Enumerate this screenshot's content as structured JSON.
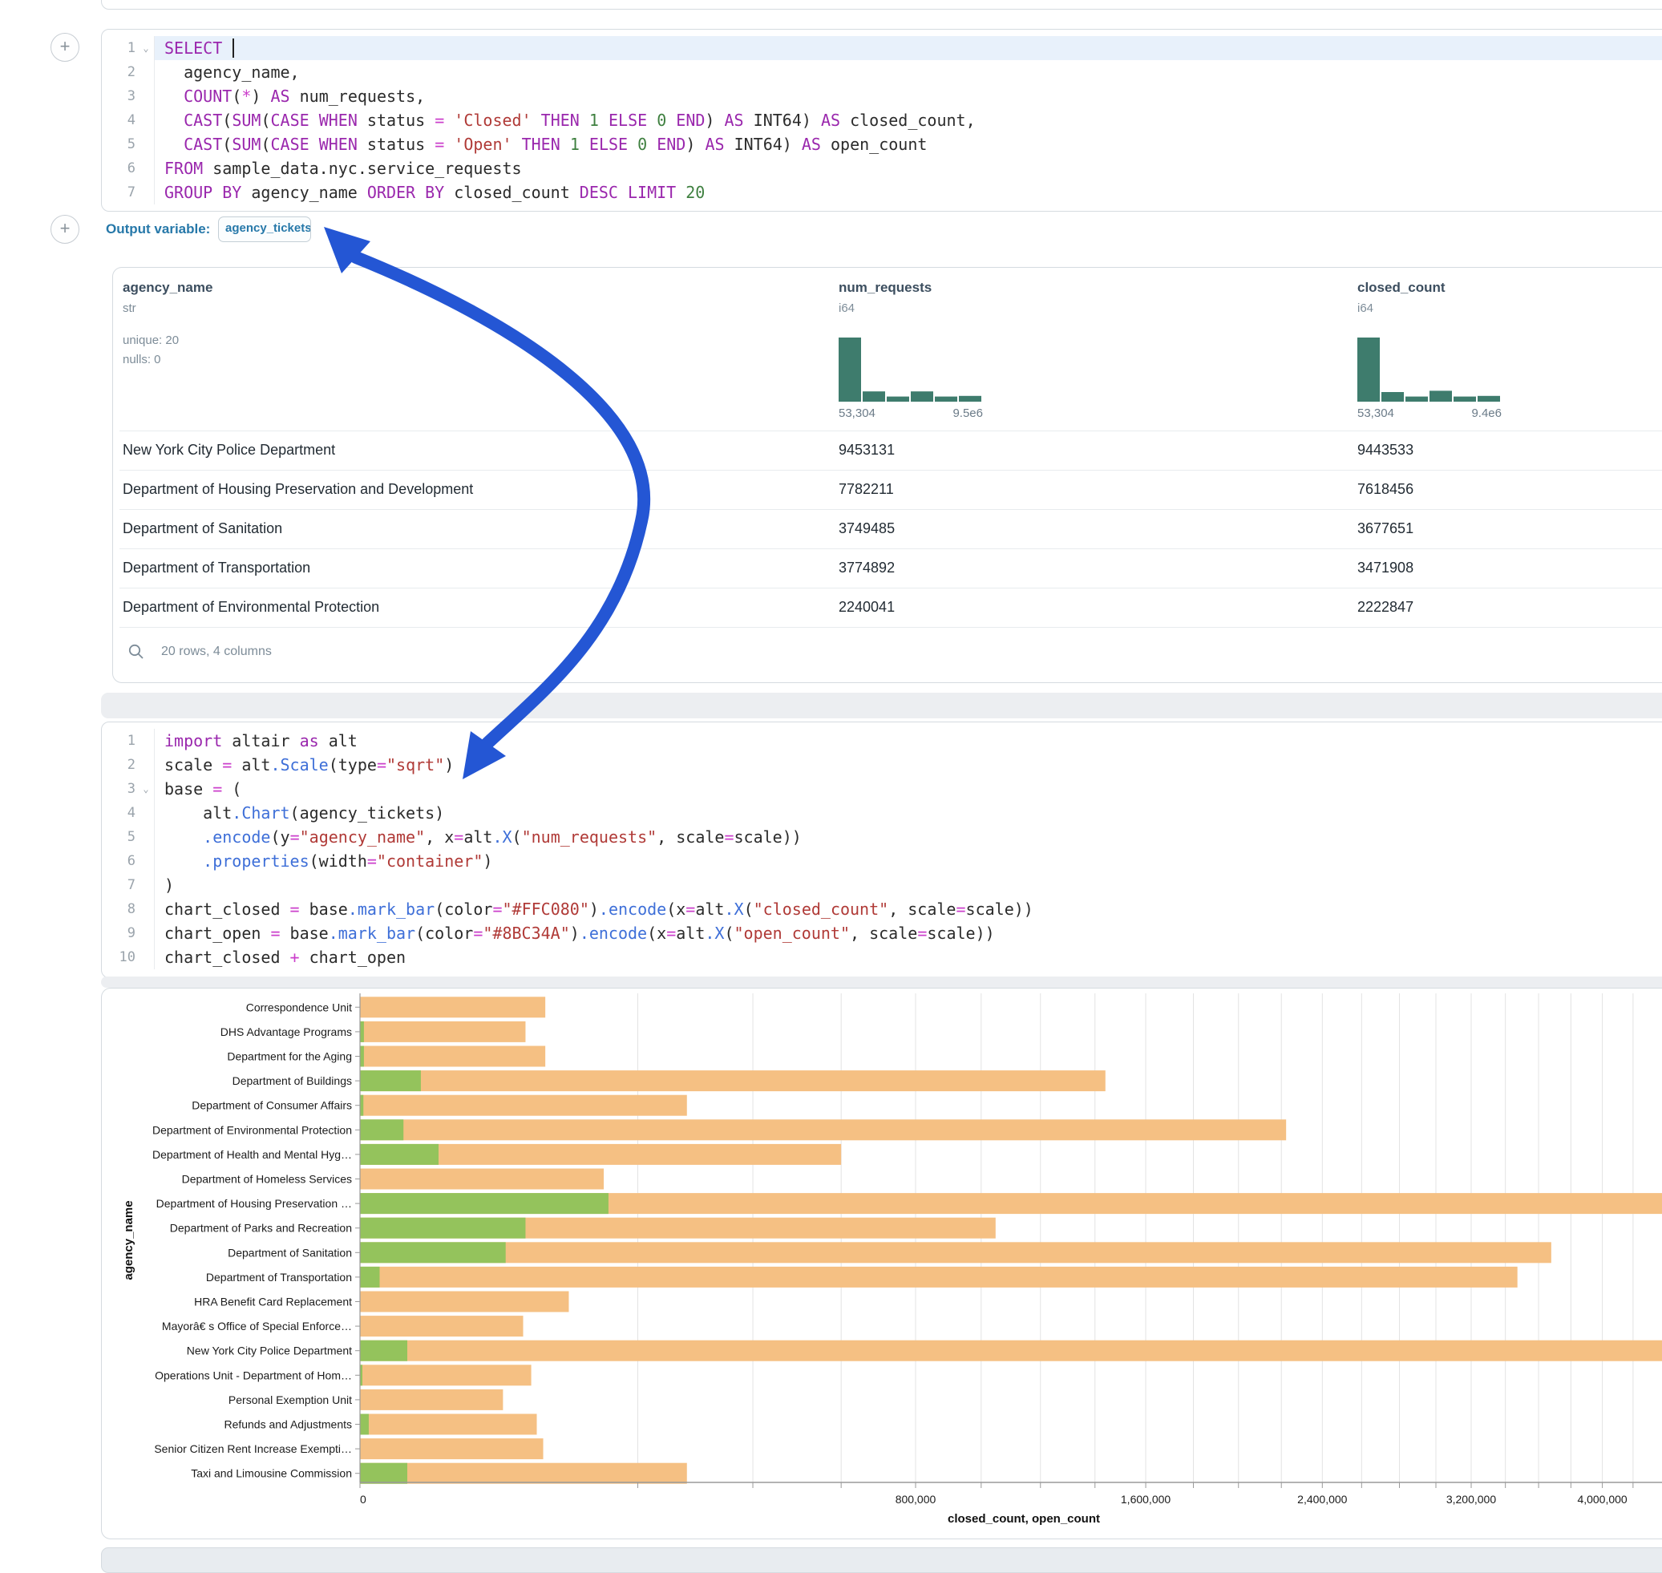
{
  "colors": {
    "accent_blue": "#2456d4",
    "hist_bar": "#3e7c6d",
    "closed_bar": "#F5C083",
    "open_bar": "#94C35C",
    "outvar_blue": "#2678a9",
    "line_highlight": "#e8f1fb"
  },
  "sql_cell": {
    "language": "sql",
    "output_variable_label": "Output variable:",
    "output_variable_value": "agency_tickets",
    "lines": [
      {
        "n": "1",
        "fold": true,
        "hl": true,
        "cursor": true,
        "tokens": [
          [
            "k",
            "SELECT"
          ],
          [
            "t",
            " "
          ]
        ]
      },
      {
        "n": "2",
        "tokens": [
          [
            "t",
            "  agency_name,"
          ]
        ]
      },
      {
        "n": "3",
        "tokens": [
          [
            "t",
            "  "
          ],
          [
            "k",
            "COUNT"
          ],
          [
            "t",
            "("
          ],
          [
            "o",
            "*"
          ],
          [
            "t",
            ") "
          ],
          [
            "k",
            "AS"
          ],
          [
            "t",
            " num_requests,"
          ]
        ]
      },
      {
        "n": "4",
        "tokens": [
          [
            "t",
            "  "
          ],
          [
            "k",
            "CAST"
          ],
          [
            "t",
            "("
          ],
          [
            "k",
            "SUM"
          ],
          [
            "t",
            "("
          ],
          [
            "k",
            "CASE"
          ],
          [
            "t",
            " "
          ],
          [
            "k",
            "WHEN"
          ],
          [
            "t",
            " status "
          ],
          [
            "o",
            "="
          ],
          [
            "t",
            " "
          ],
          [
            "s",
            "'Closed'"
          ],
          [
            "t",
            " "
          ],
          [
            "k",
            "THEN"
          ],
          [
            "t",
            " "
          ],
          [
            "n",
            "1"
          ],
          [
            "t",
            " "
          ],
          [
            "k",
            "ELSE"
          ],
          [
            "t",
            " "
          ],
          [
            "n",
            "0"
          ],
          [
            "t",
            " "
          ],
          [
            "k",
            "END"
          ],
          [
            "t",
            ") "
          ],
          [
            "k",
            "AS"
          ],
          [
            "t",
            " INT64) "
          ],
          [
            "k",
            "AS"
          ],
          [
            "t",
            " closed_count,"
          ]
        ]
      },
      {
        "n": "5",
        "tokens": [
          [
            "t",
            "  "
          ],
          [
            "k",
            "CAST"
          ],
          [
            "t",
            "("
          ],
          [
            "k",
            "SUM"
          ],
          [
            "t",
            "("
          ],
          [
            "k",
            "CASE"
          ],
          [
            "t",
            " "
          ],
          [
            "k",
            "WHEN"
          ],
          [
            "t",
            " status "
          ],
          [
            "o",
            "="
          ],
          [
            "t",
            " "
          ],
          [
            "s",
            "'Open'"
          ],
          [
            "t",
            " "
          ],
          [
            "k",
            "THEN"
          ],
          [
            "t",
            " "
          ],
          [
            "n",
            "1"
          ],
          [
            "t",
            " "
          ],
          [
            "k",
            "ELSE"
          ],
          [
            "t",
            " "
          ],
          [
            "n",
            "0"
          ],
          [
            "t",
            " "
          ],
          [
            "k",
            "END"
          ],
          [
            "t",
            ") "
          ],
          [
            "k",
            "AS"
          ],
          [
            "t",
            " INT64) "
          ],
          [
            "k",
            "AS"
          ],
          [
            "t",
            " open_count"
          ]
        ]
      },
      {
        "n": "6",
        "tokens": [
          [
            "k",
            "FROM"
          ],
          [
            "t",
            " sample_data.nyc.service_requests"
          ]
        ]
      },
      {
        "n": "7",
        "tokens": [
          [
            "k",
            "GROUP BY"
          ],
          [
            "t",
            " agency_name "
          ],
          [
            "k",
            "ORDER BY"
          ],
          [
            "t",
            " closed_count "
          ],
          [
            "k",
            "DESC"
          ],
          [
            "t",
            " "
          ],
          [
            "k",
            "LIMIT"
          ],
          [
            "t",
            " "
          ],
          [
            "n",
            "20"
          ]
        ]
      }
    ]
  },
  "table": {
    "footer_text": "20 rows, 4 columns",
    "columns": [
      {
        "name": "agency_name",
        "type": "str",
        "stats": [
          "unique: 20",
          "nulls: 0"
        ]
      },
      {
        "name": "num_requests",
        "type": "i64",
        "hist": [
          1,
          0.16,
          0.08,
          0.16,
          0.08,
          0.09
        ],
        "range_min": "53,304",
        "range_max": "9.5e6"
      },
      {
        "name": "closed_count",
        "type": "i64",
        "hist": [
          1,
          0.15,
          0.08,
          0.17,
          0.08,
          0.09
        ],
        "range_min": "53,304",
        "range_max": "9.4e6"
      }
    ],
    "rows": [
      [
        "New York City Police Department",
        "9453131",
        "9443533"
      ],
      [
        "Department of Housing Preservation and Development",
        "7782211",
        "7618456"
      ],
      [
        "Department of Sanitation",
        "3749485",
        "3677651"
      ],
      [
        "Department of Transportation",
        "3774892",
        "3471908"
      ],
      [
        "Department of Environmental Protection",
        "2240041",
        "2222847"
      ]
    ]
  },
  "python_cell": {
    "language": "python",
    "lines": [
      {
        "n": "1",
        "tokens": [
          [
            "k",
            "import"
          ],
          [
            "t",
            " altair "
          ],
          [
            "k",
            "as"
          ],
          [
            "t",
            " alt"
          ]
        ]
      },
      {
        "n": "2",
        "tokens": [
          [
            "t",
            "scale "
          ],
          [
            "o",
            "="
          ],
          [
            "t",
            " alt"
          ],
          [
            "f",
            ".Scale"
          ],
          [
            "t",
            "(type"
          ],
          [
            "o",
            "="
          ],
          [
            "s",
            "\"sqrt\""
          ],
          [
            "t",
            ")"
          ]
        ]
      },
      {
        "n": "3",
        "fold": true,
        "tokens": [
          [
            "t",
            "base "
          ],
          [
            "o",
            "="
          ],
          [
            "t",
            " ("
          ]
        ]
      },
      {
        "n": "4",
        "tokens": [
          [
            "t",
            "    alt"
          ],
          [
            "f",
            ".Chart"
          ],
          [
            "t",
            "(agency_tickets)"
          ]
        ]
      },
      {
        "n": "5",
        "tokens": [
          [
            "t",
            "    "
          ],
          [
            "f",
            ".encode"
          ],
          [
            "t",
            "(y"
          ],
          [
            "o",
            "="
          ],
          [
            "s",
            "\"agency_name\""
          ],
          [
            "t",
            ", x"
          ],
          [
            "o",
            "="
          ],
          [
            "t",
            "alt"
          ],
          [
            "f",
            ".X"
          ],
          [
            "t",
            "("
          ],
          [
            "s",
            "\"num_requests\""
          ],
          [
            "t",
            ", scale"
          ],
          [
            "o",
            "="
          ],
          [
            "t",
            "scale))"
          ]
        ]
      },
      {
        "n": "6",
        "tokens": [
          [
            "t",
            "    "
          ],
          [
            "f",
            ".properties"
          ],
          [
            "t",
            "(width"
          ],
          [
            "o",
            "="
          ],
          [
            "s",
            "\"container\""
          ],
          [
            "t",
            ")"
          ]
        ]
      },
      {
        "n": "7",
        "tokens": [
          [
            "t",
            ")"
          ]
        ]
      },
      {
        "n": "8",
        "tokens": [
          [
            "t",
            "chart_closed "
          ],
          [
            "o",
            "="
          ],
          [
            "t",
            " base"
          ],
          [
            "f",
            ".mark_bar"
          ],
          [
            "t",
            "(color"
          ],
          [
            "o",
            "="
          ],
          [
            "s",
            "\"#FFC080\""
          ],
          [
            "t",
            ")"
          ],
          [
            "f",
            ".encode"
          ],
          [
            "t",
            "(x"
          ],
          [
            "o",
            "="
          ],
          [
            "t",
            "alt"
          ],
          [
            "f",
            ".X"
          ],
          [
            "t",
            "("
          ],
          [
            "s",
            "\"closed_count\""
          ],
          [
            "t",
            ", scale"
          ],
          [
            "o",
            "="
          ],
          [
            "t",
            "scale))"
          ]
        ]
      },
      {
        "n": "9",
        "tokens": [
          [
            "t",
            "chart_open "
          ],
          [
            "o",
            "="
          ],
          [
            "t",
            " base"
          ],
          [
            "f",
            ".mark_bar"
          ],
          [
            "t",
            "(color"
          ],
          [
            "o",
            "="
          ],
          [
            "s",
            "\"#8BC34A\""
          ],
          [
            "t",
            ")"
          ],
          [
            "f",
            ".encode"
          ],
          [
            "t",
            "(x"
          ],
          [
            "o",
            "="
          ],
          [
            "t",
            "alt"
          ],
          [
            "f",
            ".X"
          ],
          [
            "t",
            "("
          ],
          [
            "s",
            "\"open_count\""
          ],
          [
            "t",
            ", scale"
          ],
          [
            "o",
            "="
          ],
          [
            "t",
            "scale))"
          ]
        ]
      },
      {
        "n": "10",
        "tokens": [
          [
            "t",
            "chart_closed "
          ],
          [
            "o",
            "+"
          ],
          [
            "t",
            " chart_open"
          ]
        ]
      }
    ]
  },
  "chart_data": {
    "type": "bar",
    "orientation": "horizontal",
    "x_scale": "sqrt",
    "xlabel": "closed_count, open_count",
    "ylabel": "agency_name",
    "legend": "none",
    "grid": true,
    "categories": [
      "Correspondence Unit",
      "DHS Advantage Programs",
      "Department for the Aging",
      "Department of Buildings",
      "Department of Consumer Affairs",
      "Department of Environmental Protection",
      "Department of Health and Mental Hyg…",
      "Department of Homeless Services",
      "Department of Housing Preservation …",
      "Department of Parks and Recreation",
      "Department of Sanitation",
      "Department of Transportation",
      "HRA Benefit Card Replacement",
      "Mayorâ€ s Office of Special Enforce…",
      "New York City Police Department",
      "Operations Unit - Department of Hom…",
      "Personal Exemption Unit",
      "Refunds and Adjustments",
      "Senior Citizen Rent Increase Exempti…",
      "Taxi and Limousine Commission"
    ],
    "series": [
      {
        "name": "closed_count",
        "color": "#F5C083",
        "values": [
          89000,
          71000,
          89000,
          1440000,
          277000,
          2222847,
          600000,
          154000,
          7618456,
          1047000,
          3677651,
          3471908,
          113000,
          69000,
          9443533,
          76000,
          53000,
          81000,
          87000,
          277000
        ]
      },
      {
        "name": "open_count",
        "color": "#94C35C",
        "values": [
          0,
          40,
          40,
          9600,
          30,
          4900,
          16000,
          0,
          160000,
          71000,
          55000,
          1000,
          0,
          0,
          5800,
          15,
          0,
          200,
          0,
          5800
        ]
      }
    ],
    "x_major_ticks": [
      [
        0,
        "0"
      ],
      [
        800000,
        "800,000"
      ],
      [
        1600000,
        "1,600,000"
      ],
      [
        2400000,
        "2,400,000"
      ],
      [
        3200000,
        "3,200,000"
      ],
      [
        4000000,
        "4,000,000"
      ]
    ],
    "x_minor_tick_step": 200000,
    "x_visible_max": 4400000
  }
}
